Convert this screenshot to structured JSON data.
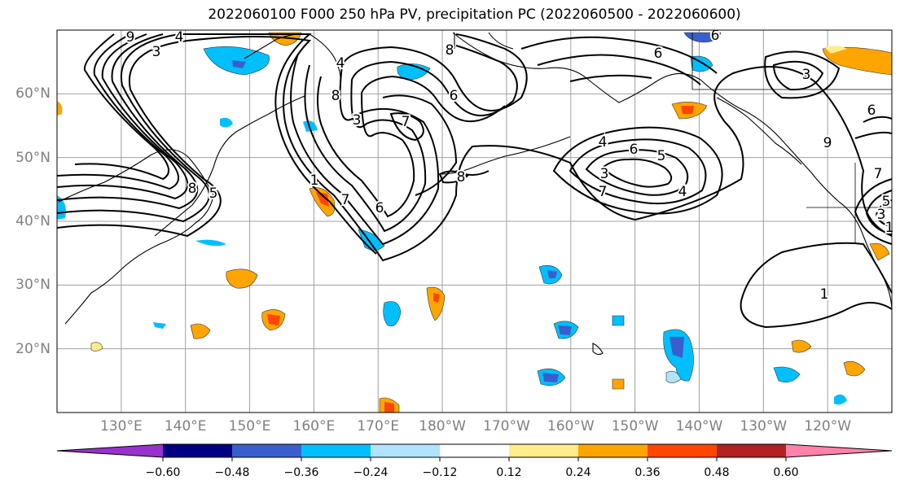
{
  "title": "2022060100 F000 250 hPa PV, precipitation PC (2022060500 - 2022060600)",
  "map": {
    "lat_labels": [
      "60°N",
      "50°N",
      "40°N",
      "30°N",
      "20°N"
    ],
    "lat_values": [
      60,
      50,
      40,
      30,
      20
    ],
    "lon_labels": [
      "130°E",
      "140°E",
      "150°E",
      "160°E",
      "170°E",
      "180°W",
      "170°W",
      "160°W",
      "150°W",
      "140°W",
      "130°W",
      "120°W"
    ],
    "lon_values": [
      130,
      140,
      150,
      160,
      170,
      180,
      190,
      200,
      210,
      220,
      230,
      240
    ],
    "lon_range": [
      120,
      250
    ],
    "lat_range": [
      10,
      70
    ],
    "grid": true,
    "contour_labels": [
      "9",
      "3",
      "4",
      "4",
      "8",
      "8",
      "6",
      "7",
      "3",
      "8",
      "6",
      "7",
      "5",
      "8",
      "4",
      "6",
      "5",
      "4",
      "3",
      "7",
      "1",
      "6",
      "6",
      "3",
      "6",
      "9",
      "7",
      "1",
      "5",
      "3",
      "1"
    ]
  },
  "colorbar": {
    "colors": [
      "#9932cc",
      "#000080",
      "#3a5fcd",
      "#00bfff",
      "#b2e3ff",
      "#ffffff",
      "#ffec8b",
      "#ffa500",
      "#ff4500",
      "#b22222",
      "#ff82ab"
    ],
    "tick_labels": [
      "−0.60",
      "−0.48",
      "−0.36",
      "−0.24",
      "−0.12",
      "0.12",
      "0.24",
      "0.36",
      "0.48",
      "0.60"
    ],
    "tick_values": [
      -0.6,
      -0.48,
      -0.36,
      -0.24,
      -0.12,
      0.12,
      0.24,
      0.36,
      0.48,
      0.6
    ],
    "extend": "both"
  }
}
